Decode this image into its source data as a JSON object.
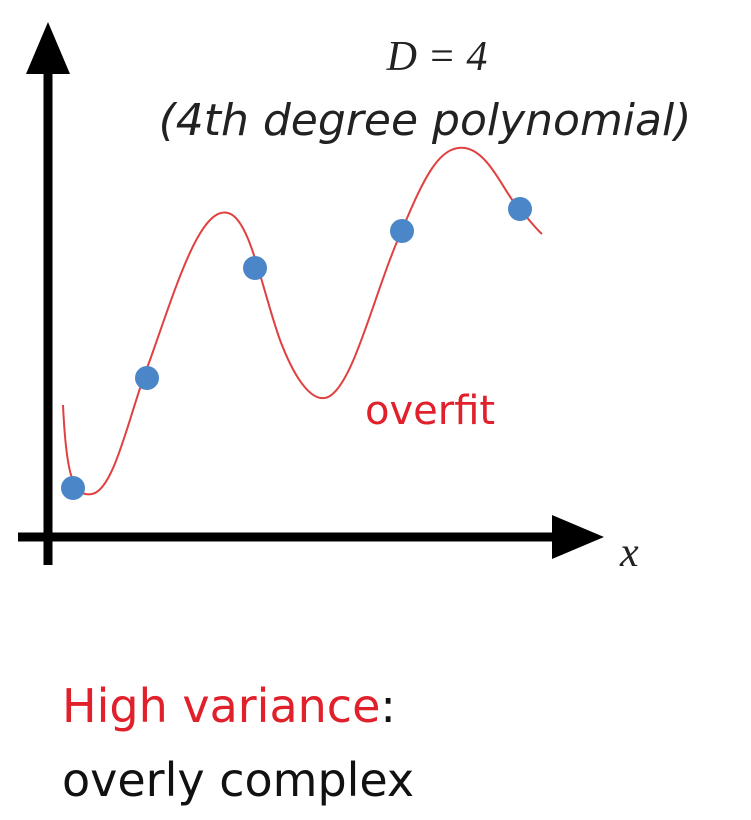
{
  "title": {
    "equation": "D = 4",
    "subtitle": "(4th degree polynomial)"
  },
  "labels": {
    "curve": "overfit",
    "x_axis": "x"
  },
  "caption": {
    "highlight": "High variance",
    "colon": ":",
    "text": "overly complex"
  }
}
